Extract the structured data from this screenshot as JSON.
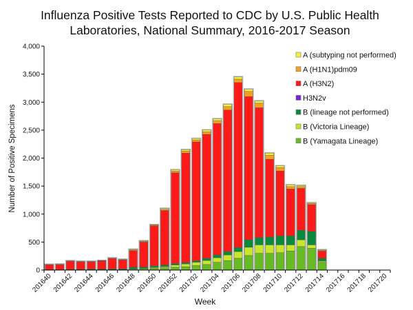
{
  "chart_data": {
    "type": "bar",
    "stacked": true,
    "title": "Influenza Positive Tests Reported to CDC by U.S. Public Health Laboratories, National Summary, 2016-2017 Season",
    "title_lines": [
      "Influenza Positive Tests Reported to CDC by U.S. Public Health",
      "Laboratories, National Summary, 2016-2017 Season"
    ],
    "xlabel": "Week",
    "ylabel": "Number of Positive Specimens",
    "ylim": [
      0,
      4000
    ],
    "yticks": [
      0,
      500,
      1000,
      1500,
      2000,
      2500,
      3000,
      3500,
      4000
    ],
    "ytick_labels": [
      "0",
      "500",
      "1,000",
      "1,500",
      "2,000",
      "2,500",
      "3,000",
      "3,500",
      "4,000"
    ],
    "grid": false,
    "legend_position": "top-right",
    "categories": [
      "201640",
      "201641",
      "201642",
      "201643",
      "201644",
      "201645",
      "201646",
      "201647",
      "201648",
      "201649",
      "201650",
      "201651",
      "201652",
      "201701",
      "201702",
      "201703",
      "201704",
      "201705",
      "201706",
      "201707",
      "201708",
      "201709",
      "201710",
      "201711",
      "201712",
      "201713",
      "201714",
      "201715",
      "201716",
      "201717",
      "201718",
      "201719",
      "201720"
    ],
    "xtick_labels": [
      "201640",
      "201642",
      "201644",
      "201646",
      "201648",
      "201650",
      "201652",
      "201702",
      "201704",
      "201706",
      "201708",
      "201710",
      "201712",
      "201714",
      "201716",
      "201718",
      "201720"
    ],
    "series": [
      {
        "name": "B (Yamagata Lineage)",
        "color": "#66bb22",
        "values": [
          3,
          3,
          4,
          4,
          6,
          6,
          8,
          8,
          15,
          20,
          30,
          40,
          50,
          60,
          80,
          100,
          140,
          170,
          210,
          260,
          300,
          300,
          310,
          340,
          420,
          390,
          140,
          0,
          0,
          0,
          0,
          0,
          0
        ]
      },
      {
        "name": "B (Victoria Lineage)",
        "color": "#c8e62c",
        "values": [
          1,
          1,
          2,
          2,
          3,
          3,
          3,
          4,
          8,
          10,
          15,
          20,
          40,
          50,
          60,
          70,
          80,
          100,
          120,
          147,
          150,
          150,
          140,
          110,
          120,
          60,
          20,
          0,
          0,
          0,
          0,
          0,
          0
        ]
      },
      {
        "name": "B (lineage not performed)",
        "color": "#078a3c",
        "values": [
          4,
          4,
          6,
          6,
          10,
          8,
          10,
          10,
          30,
          25,
          30,
          30,
          25,
          25,
          25,
          40,
          50,
          60,
          75,
          135,
          130,
          140,
          160,
          160,
          170,
          240,
          50,
          0,
          0,
          0,
          0,
          0,
          0
        ]
      },
      {
        "name": "H3N2v",
        "color": "#7f1fe0",
        "values": [
          0,
          0,
          0,
          0,
          0,
          0,
          0,
          0,
          0,
          0,
          0,
          0,
          0,
          0,
          0,
          0,
          0,
          0,
          0,
          0,
          0,
          0,
          0,
          0,
          0,
          0,
          0,
          0,
          0,
          0,
          0,
          0,
          0
        ]
      },
      {
        "name": "A (H3N2)",
        "color": "#ff1a1a",
        "values": [
          85,
          90,
          145,
          135,
          128,
          145,
          185,
          158,
          295,
          445,
          715,
          975,
          1625,
          1955,
          2125,
          2215,
          2350,
          2530,
          2945,
          2558,
          2320,
          1390,
          1160,
          840,
          750,
          480,
          130,
          0,
          0,
          0,
          0,
          0,
          0
        ]
      },
      {
        "name": "A (H1N1)pdm09",
        "color": "#f5a020",
        "values": [
          4,
          4,
          5,
          5,
          5,
          5,
          6,
          6,
          12,
          12,
          12,
          20,
          30,
          35,
          35,
          45,
          50,
          60,
          60,
          90,
          80,
          70,
          60,
          40,
          30,
          20,
          10,
          0,
          0,
          0,
          0,
          0,
          0
        ]
      },
      {
        "name": "A (subtyping not performed)",
        "color": "#f5f03a",
        "values": [
          3,
          3,
          3,
          3,
          3,
          3,
          3,
          4,
          10,
          8,
          8,
          15,
          20,
          25,
          25,
          30,
          30,
          40,
          40,
          40,
          40,
          40,
          30,
          30,
          20,
          10,
          10,
          0,
          0,
          0,
          0,
          0,
          0
        ]
      }
    ],
    "legend_order": [
      "A (subtyping not performed)",
      "A (H1N1)pdm09",
      "A (H3N2)",
      "H3N2v",
      "B (lineage not performed)",
      "B (Victoria Lineage)",
      "B (Yamagata Lineage)"
    ]
  }
}
